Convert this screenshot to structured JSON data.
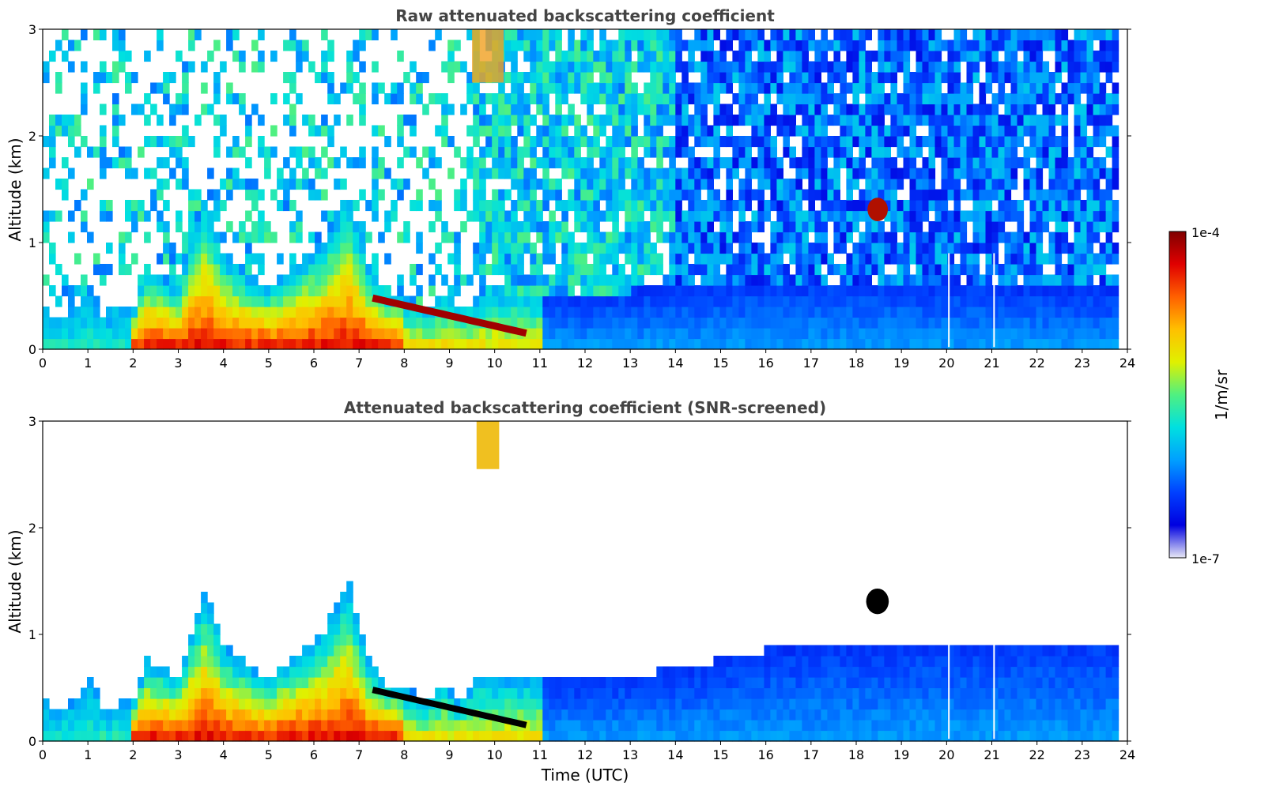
{
  "chart_data": [
    {
      "type": "heatmap",
      "title": "Raw attenuated backscattering coefficient",
      "xlabel": "",
      "ylabel": "Altitude (km)",
      "xlim": [
        0,
        24
      ],
      "ylim": [
        0,
        3
      ],
      "x_ticks": [
        "0",
        "1",
        "2",
        "3",
        "4",
        "5",
        "6",
        "7",
        "8",
        "9",
        "10",
        "11",
        "12",
        "13",
        "14",
        "15",
        "16",
        "17",
        "18",
        "19",
        "20",
        "21",
        "22",
        "23",
        "24"
      ],
      "y_ticks": [
        "0",
        "1",
        "2",
        "3"
      ],
      "data_end_hour": 23.8,
      "gap_lines_hours": [
        20.05,
        21.05
      ],
      "aerosol_layer_top_km": [
        [
          0,
          0.38
        ],
        [
          0.5,
          0.3
        ],
        [
          1.1,
          0.6
        ],
        [
          1.3,
          0.34
        ],
        [
          2,
          0.36
        ],
        [
          2.3,
          0.75
        ],
        [
          3,
          0.6
        ],
        [
          3.6,
          1.47
        ],
        [
          4,
          0.9
        ],
        [
          4.5,
          0.72
        ],
        [
          5,
          0.6
        ],
        [
          5.5,
          0.78
        ],
        [
          6.2,
          1.0
        ],
        [
          6.75,
          1.5
        ],
        [
          7.2,
          0.78
        ],
        [
          7.6,
          0.55
        ],
        [
          8.5,
          0.4
        ],
        [
          8.9,
          0.55
        ],
        [
          9.2,
          0.4
        ],
        [
          10,
          0.55
        ],
        [
          12,
          0.5
        ],
        [
          14,
          0.6
        ],
        [
          16,
          0.65
        ],
        [
          18,
          0.62
        ],
        [
          20,
          0.6
        ],
        [
          23.8,
          0.55
        ]
      ],
      "features": [
        {
          "name": "residual layer",
          "x_hours": [
            7.3,
            10.7
          ],
          "altitude_km": [
            0.48,
            0.15
          ]
        },
        {
          "name": "cloud",
          "x_hours": [
            18.25,
            18.7
          ],
          "altitude_km": [
            1.2,
            1.42
          ]
        },
        {
          "name": "upper aerosol plume",
          "x_hours": [
            9.5,
            10.2
          ],
          "altitude_km": [
            2.5,
            3.0
          ]
        }
      ]
    },
    {
      "type": "heatmap",
      "title": "Attenuated backscattering coefficient (SNR-screened)",
      "xlabel": "Time (UTC)",
      "ylabel": "Altitude (km)",
      "xlim": [
        0,
        24
      ],
      "ylim": [
        0,
        3
      ],
      "x_ticks": [
        "0",
        "1",
        "2",
        "3",
        "4",
        "5",
        "6",
        "7",
        "8",
        "9",
        "10",
        "11",
        "12",
        "13",
        "14",
        "15",
        "16",
        "17",
        "18",
        "19",
        "20",
        "21",
        "22",
        "23",
        "24"
      ],
      "y_ticks": [
        "0",
        "1",
        "2",
        "3"
      ],
      "data_end_hour": 23.8,
      "gap_lines_hours": [
        20.05,
        21.05
      ],
      "screened_layer_top_km": [
        [
          0,
          0.38
        ],
        [
          0.5,
          0.3
        ],
        [
          1.1,
          0.58
        ],
        [
          1.3,
          0.34
        ],
        [
          2,
          0.36
        ],
        [
          2.3,
          0.78
        ],
        [
          3,
          0.6
        ],
        [
          3.6,
          1.47
        ],
        [
          4,
          0.9
        ],
        [
          4.5,
          0.72
        ],
        [
          5,
          0.6
        ],
        [
          5.5,
          0.78
        ],
        [
          6.2,
          1.0
        ],
        [
          6.75,
          1.52
        ],
        [
          7.2,
          0.78
        ],
        [
          7.6,
          0.55
        ],
        [
          8.5,
          0.4
        ],
        [
          8.9,
          0.55
        ],
        [
          9.2,
          0.35
        ],
        [
          9.6,
          0.6
        ],
        [
          12,
          0.55
        ],
        [
          14,
          0.68
        ],
        [
          16,
          0.85
        ],
        [
          18,
          0.9
        ],
        [
          20,
          0.95
        ],
        [
          23.8,
          0.95
        ]
      ]
    }
  ],
  "colorbar": {
    "label": "1/m/sr",
    "max_label": "1e-4",
    "min_label": "1e-7",
    "scale": "log",
    "colormap": [
      "#e8e8f5",
      "#0000e0",
      "#0040ff",
      "#00a0ff",
      "#00e0e0",
      "#50f080",
      "#e0f000",
      "#ffc000",
      "#ff6000",
      "#e00000",
      "#800000"
    ]
  }
}
